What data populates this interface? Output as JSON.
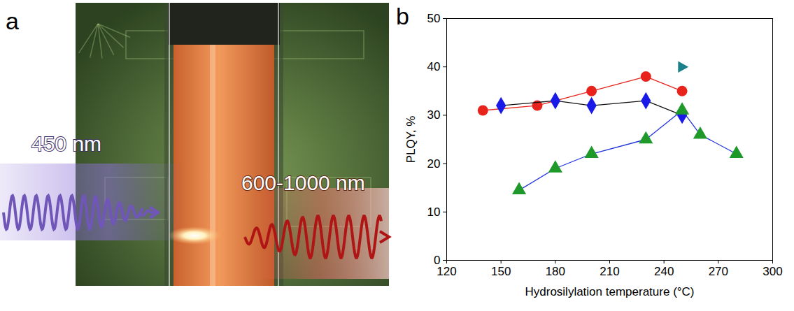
{
  "panel_a": {
    "panel_label": "a",
    "excitation_label": "450 nm",
    "emission_label": "600-1000 nm"
  },
  "chart_data": {
    "panel_label": "b",
    "type": "line",
    "x_label": "Hydrosilylation temperature (°C)",
    "y_label": "PLQY, %",
    "xlim": [
      120,
      300
    ],
    "xticks": [
      120,
      150,
      180,
      210,
      240,
      270,
      300
    ],
    "ylim": [
      0,
      50
    ],
    "yticks": [
      0,
      10,
      20,
      30,
      40,
      50
    ],
    "grid": false,
    "series": [
      {
        "type": "line",
        "color": "#e8231c",
        "marker": "circle",
        "line_style": "solid",
        "x": [
          140,
          170,
          200,
          230,
          250
        ],
        "values": [
          31,
          32,
          35,
          38,
          35
        ]
      },
      {
        "type": "line",
        "color": "#1a1ae8",
        "marker": "diamond",
        "line_style": "solid",
        "x": [
          150,
          180,
          200,
          230,
          250
        ],
        "values": [
          32,
          33,
          32,
          33,
          30
        ]
      },
      {
        "type": "line",
        "color": "#1f9a2a",
        "marker": "triangle",
        "line_style": "solid",
        "x": [
          160,
          180,
          200,
          230,
          250,
          260,
          280
        ],
        "values": [
          14.5,
          19,
          22,
          25,
          31,
          26,
          22
        ]
      },
      {
        "type": "scatter",
        "color": "#1a808c",
        "marker": "triangle-right",
        "line_style": "none",
        "x": [
          250
        ],
        "values": [
          40
        ]
      }
    ]
  }
}
